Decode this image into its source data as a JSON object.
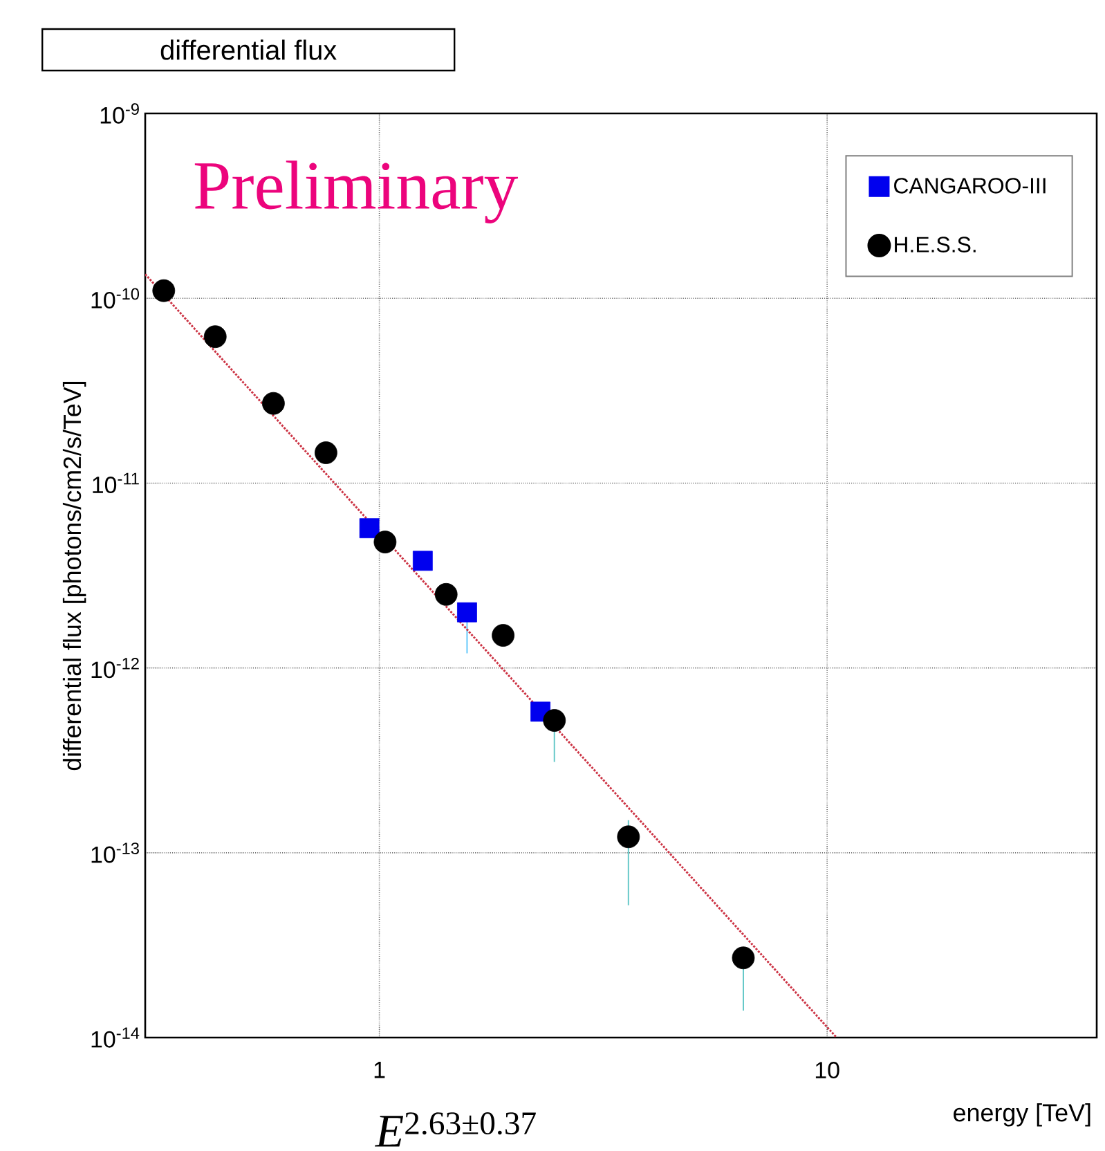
{
  "chart_data": {
    "type": "scatter",
    "title": "differential flux",
    "xlabel": "energy [TeV]",
    "ylabel": "differential flux [photons/cm2/s/TeV]",
    "annotations": [
      "Preliminary",
      "*E*$^{2.63±0.37}$"
    ],
    "log": "xy",
    "grid": true,
    "legend": "top right",
    "xlim": [
      0.3,
      40
    ],
    "ylim": [
      1e-14,
      1e-09
    ],
    "xticks": [
      1,
      10
    ],
    "yticks": [
      {
        "value": 1e-14,
        "label": "10$^{-14}$"
      },
      {
        "value": 1e-13,
        "label": "10$^{-13}$"
      },
      {
        "value": 1e-12,
        "label": "10$^{-12}$"
      },
      {
        "value": 1e-11,
        "label": "10$^{-11}$"
      },
      {
        "value": 1e-10,
        "label": "10$^{-10}$"
      },
      {
        "value": 1e-09,
        "label": "10$^{-9}$"
      }
    ],
    "series": [
      {
        "name": "CANGAROO-III",
        "color": "#0000ee",
        "marker": "square",
        "x": [
          0.95,
          1.25,
          1.57,
          2.29
        ],
        "values": [
          5.7e-12,
          3.8e-12,
          2e-12,
          5.8e-13
        ],
        "errors": [
          null,
          null,
          [
            1.2e-12,
            2.2e-12
          ],
          null
        ]
      },
      {
        "name": "H.E.S.S.",
        "color": "#000000",
        "marker": "circle",
        "x": [
          0.33,
          0.43,
          0.58,
          0.76,
          1.03,
          1.41,
          1.89,
          2.46,
          3.6,
          6.5
        ],
        "values": [
          1.1e-10,
          6.2e-11,
          2.7e-11,
          1.46e-11,
          4.8e-12,
          2.5e-12,
          1.5e-12,
          5.2e-13,
          1.22e-13,
          2.7e-14
        ],
        "errors": [
          null,
          null,
          null,
          null,
          null,
          null,
          null,
          [
            3.1e-13,
            5.2e-13
          ],
          [
            5.2e-14,
            1.5e-13
          ],
          [
            1.4e-14,
            3e-14
          ]
        ]
      },
      {
        "type": "line",
        "color": "#cc3344",
        "line_style": "dotted",
        "marker": "none",
        "x": [
          0.3,
          10.5
        ],
        "values": [
          1.35e-10,
          1e-14
        ]
      }
    ]
  }
}
